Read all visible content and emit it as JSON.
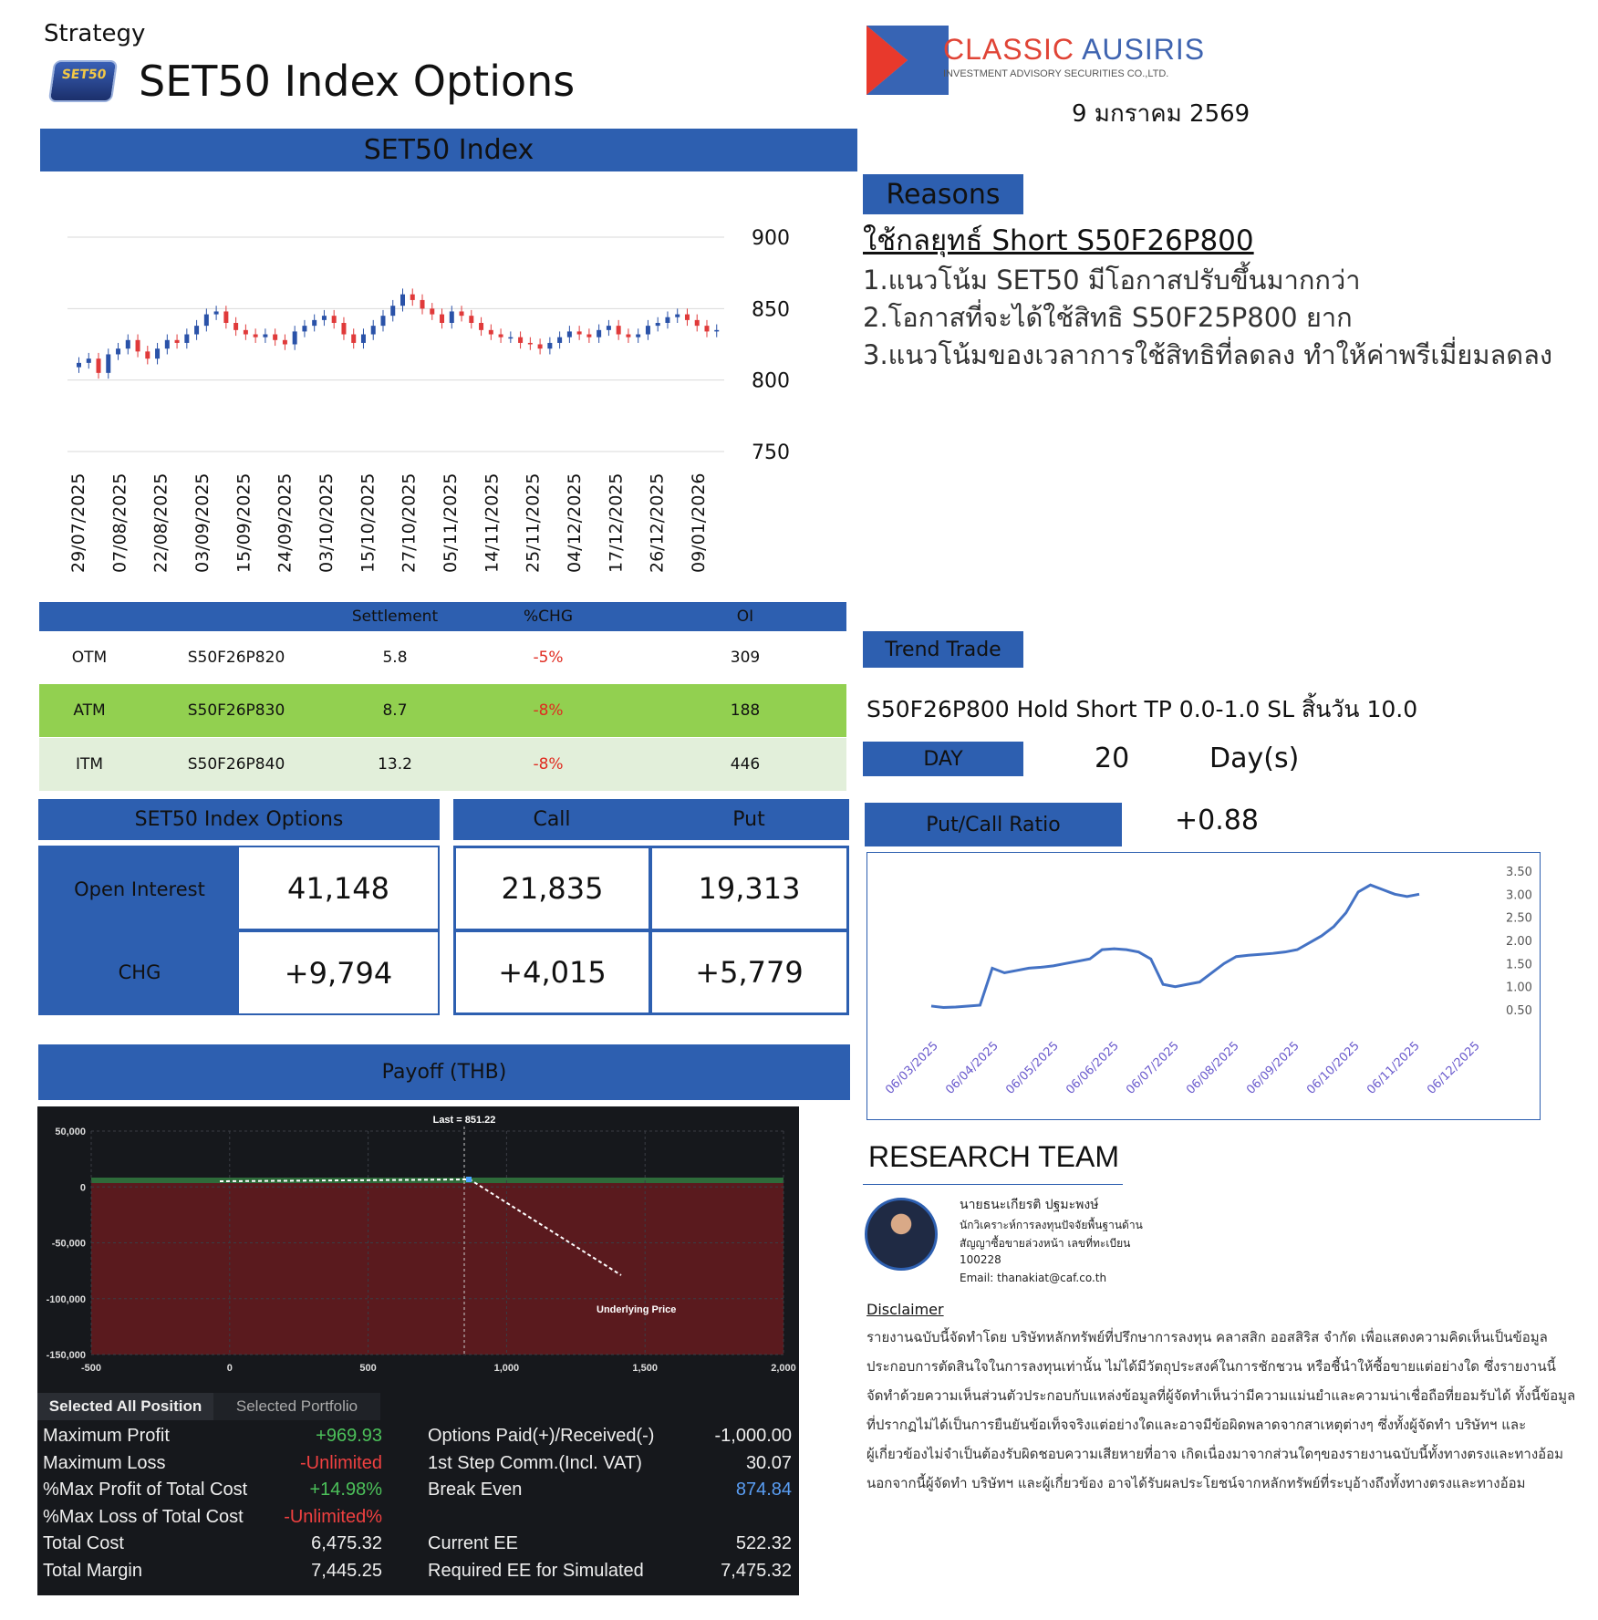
{
  "header": {
    "strategy": "Strategy",
    "logo_text": "SET50",
    "title": "SET50 Index Options",
    "company_name_red": "CLASSIC",
    "company_name_blue": "AUSIRIS",
    "company_sub": "INVESTMENT ADVISORY SECURITIES CO.,LTD.",
    "date": "9 มกราคม 2569"
  },
  "index_chart": {
    "header": "SET50 Index"
  },
  "chart_data": [
    {
      "type": "candlestick",
      "title": "SET50 Index",
      "ylim": [
        750,
        900
      ],
      "yticks": [
        "900",
        "850",
        "800",
        "750"
      ],
      "x_ticks": [
        "29/07/2025",
        "07/08/2025",
        "22/08/2025",
        "03/09/2025",
        "15/09/2025",
        "24/09/2025",
        "03/10/2025",
        "15/10/2025",
        "27/10/2025",
        "05/11/2025",
        "14/11/2025",
        "25/11/2025",
        "04/12/2025",
        "17/12/2025",
        "26/12/2025",
        "09/01/2026"
      ],
      "close": [
        812,
        815,
        805,
        818,
        822,
        828,
        820,
        815,
        822,
        828,
        826,
        832,
        838,
        846,
        848,
        840,
        835,
        832,
        830,
        832,
        828,
        825,
        834,
        838,
        842,
        845,
        840,
        832,
        826,
        832,
        838,
        845,
        852,
        860,
        856,
        850,
        846,
        840,
        848,
        845,
        840,
        835,
        832,
        830,
        830,
        826,
        825,
        822,
        826,
        830,
        834,
        832,
        830,
        835,
        838,
        832,
        830,
        832,
        838,
        840,
        844,
        846,
        842,
        838,
        834,
        835
      ]
    },
    {
      "type": "line",
      "title": "",
      "ylim": [
        0.5,
        3.5
      ],
      "yticks": [
        "3.50",
        "3.00",
        "2.50",
        "2.00",
        "1.50",
        "1.00",
        "0.50"
      ],
      "x_ticks": [
        "06/03/2025",
        "06/04/2025",
        "06/05/2025",
        "06/06/2025",
        "06/07/2025",
        "06/08/2025",
        "06/09/2025",
        "06/10/2025",
        "06/11/2025",
        "06/12/2025"
      ],
      "values": [
        0.58,
        0.55,
        0.56,
        0.58,
        0.6,
        1.4,
        1.3,
        1.35,
        1.4,
        1.42,
        1.45,
        1.5,
        1.55,
        1.6,
        1.8,
        1.82,
        1.8,
        1.75,
        1.6,
        1.05,
        1.0,
        1.05,
        1.1,
        1.3,
        1.5,
        1.65,
        1.68,
        1.7,
        1.72,
        1.75,
        1.8,
        1.95,
        2.1,
        2.3,
        2.6,
        3.05,
        3.2,
        3.1,
        3.0,
        2.95,
        3.0
      ]
    }
  ],
  "reasons": {
    "header": "Reasons",
    "strategy": "ใช้กลยุทธ์ Short S50F26P800",
    "items": [
      "1.แนวโน้ม SET50 มีโอกาสปรับขึ้นมากกว่า",
      "2.โอกาสที่จะได้ใช้สิทธิ S50F25P800 ยาก",
      "3.แนวโน้มของเวลาการใช้สิทธิที่ลดลง ทำให้ค่าพรีเมี่ยมลดลง"
    ]
  },
  "options_table": {
    "headers": {
      "settlement": "Settlement",
      "chg": "%CHG",
      "oi": "OI"
    },
    "rows": [
      {
        "type": "OTM",
        "series": "S50F26P820",
        "settlement": "5.8",
        "chg": "-5%",
        "oi": "309",
        "bg": "#ffffff"
      },
      {
        "type": "ATM",
        "series": "S50F26P830",
        "settlement": "8.7",
        "chg": "-8%",
        "oi": "188",
        "bg": "#92d050"
      },
      {
        "type": "ITM",
        "series": "S50F26P840",
        "settlement": "13.2",
        "chg": "-8%",
        "oi": "446",
        "bg": "#e2efda"
      }
    ]
  },
  "oi_summary": {
    "header": "SET50 Index Options",
    "call_header": "Call",
    "put_header": "Put",
    "open_interest_label": "Open Interest",
    "chg_label": "CHG",
    "open_interest": "41,148",
    "chg": "+9,794",
    "call_oi": "21,835",
    "put_oi": "19,313",
    "call_chg": "+4,015",
    "put_chg": "+5,779"
  },
  "payoff": {
    "header": "Payoff (THB)",
    "last_label": "Last = 851.22",
    "underlying_label": "Underlying Price",
    "y_ticks": [
      "50,000",
      "0",
      "-50,000",
      "-100,000",
      "-150,000"
    ],
    "x_ticks": [
      "-500",
      "0",
      "500",
      "1,000",
      "1,500",
      "2,000"
    ],
    "tab_active": "Selected All Position",
    "tab_inactive": "Selected Portfolio",
    "stats_left": [
      {
        "label": "Maximum Profit",
        "value": "+969.93",
        "color": "green"
      },
      {
        "label": "Maximum Loss",
        "value": "-Unlimited",
        "color": "red"
      },
      {
        "label": "%Max Profit of Total Cost",
        "value": "+14.98%",
        "color": "green"
      },
      {
        "label": "%Max Loss of Total Cost",
        "value": "-Unlimited%",
        "color": "red"
      },
      {
        "label": "Total Cost",
        "value": "6,475.32",
        "color": "white"
      },
      {
        "label": "Total Margin",
        "value": "7,445.25",
        "color": "white"
      }
    ],
    "stats_right": [
      {
        "label": "Options Paid(+)/Received(-)",
        "value": "-1,000.00",
        "color": "white"
      },
      {
        "label": "1st Step Comm.(Incl. VAT)",
        "value": "30.07",
        "color": "white"
      },
      {
        "label": "Break Even",
        "value": "874.84",
        "color": "blue"
      },
      {
        "label": "",
        "value": "",
        "color": "white"
      },
      {
        "label": "Current EE",
        "value": "522.32",
        "color": "white"
      },
      {
        "label": "Required EE for Simulated",
        "value": "7,475.32",
        "color": "white"
      }
    ]
  },
  "trend": {
    "header": "Trend Trade",
    "text": "S50F26P800 Hold Short TP 0.0-1.0 SL สิ้นวัน 10.0",
    "day_label": "DAY",
    "day_value": "20",
    "day_unit": "Day(s)",
    "pcr_label": "Put/Call Ratio",
    "pcr_value": "+0.88"
  },
  "research": {
    "title": "RESEARCH TEAM",
    "name": "นายธนะเกียรติ ปฐมะพงษ์",
    "role1": "นักวิเคราะห์การลงทุนปัจจัยพื้นฐานด้าน",
    "role2": "สัญญาซื้อขายล่วงหน้า เลขที่ทะเบียน",
    "reg": "100228",
    "email": "Email: thanakiat@caf.co.th"
  },
  "disclaimer": {
    "title": "Disclaimer",
    "lines": [
      "รายงานฉบับนี้จัดทำโดย บริษัทหลักทรัพย์ที่ปรึกษาการลงทุน คลาสสิก ออสสิริส จำกัด เพื่อแสดงความคิดเห็นเป็นข้อมูล",
      "ประกอบการตัดสินใจในการลงทุนเท่านั้น ไม่ได้มีวัตถุประสงค์ในการชักชวน หรือชี้นำให้ซื้อขายแต่อย่างใด ซึ่งรายงานนี้",
      "จัดทำด้วยความเห็นส่วนตัวประกอบกับแหล่งข้อมูลที่ผู้จัดทำเห็นว่ามีความแม่นยำและความน่าเชื่อถือที่ยอมรับได้ ทั้งนี้ข้อมูล",
      "ที่ปรากฏไม่ได้เป็นการยืนยันข้อเท็จจริงแต่อย่างใดและอาจมีข้อผิดพลาดจากสาเหตุต่างๆ ซึ่งทั้งผู้จัดทำ บริษัทฯ และ",
      "ผู้เกี่ยวข้องไม่จำเป็นต้องรับผิดชอบความเสียหายที่อาจ เกิดเนื่องมาจากส่วนใดๆของรายงานฉบับนี้ทั้งทางตรงและทางอ้อม",
      "นอกจากนี้ผู้จัดทำ บริษัทฯ และผู้เกี่ยวข้อง อาจได้รับผลประโยชน์จากหลักทรัพย์ที่ระบุอ้างถึงทั้งทางตรงและทางอ้อม"
    ]
  }
}
